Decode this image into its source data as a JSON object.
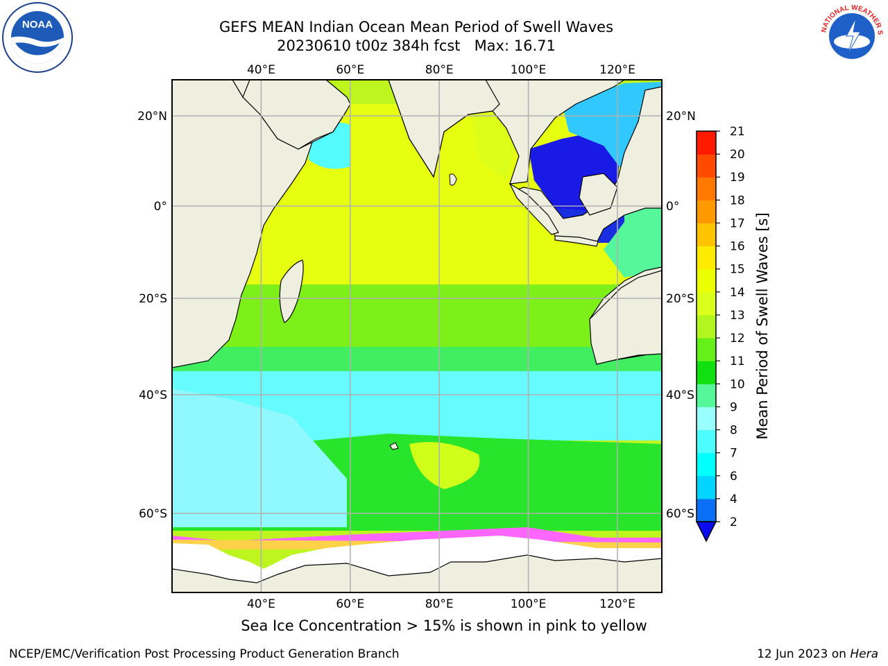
{
  "header": {
    "title_line1": "GEFS MEAN Indian Ocean Mean Period of Swell Waves",
    "title_line2": "20230610 t00z 384h fcst   Max: 16.71"
  },
  "map": {
    "lon_ticks": [
      "40°E",
      "60°E",
      "80°E",
      "100°E",
      "120°E"
    ],
    "lat_ticks": [
      "20°N",
      "0°",
      "20°S",
      "40°S",
      "60°S"
    ],
    "lon_range": [
      20,
      130
    ],
    "lat_range": [
      -72,
      28
    ]
  },
  "colorbar": {
    "label": "Mean Period of Swell Waves [s]",
    "ticks": [
      "2",
      "4",
      "6",
      "7",
      "8",
      "9",
      "10",
      "11",
      "12",
      "13",
      "14",
      "15",
      "16",
      "17",
      "18",
      "19",
      "20",
      "21"
    ],
    "colors": [
      "#0a6ff5",
      "#00d4ff",
      "#00ffff",
      "#4dfcff",
      "#99ffff",
      "#55f79a",
      "#10e010",
      "#66f01a",
      "#b2f51f",
      "#d9ff1a",
      "#ecff00",
      "#ffeb00",
      "#ffc400",
      "#ff9900",
      "#ff7800",
      "#ff4a00",
      "#ff1a00"
    ],
    "under_color": "#0c0cf0"
  },
  "subtitle": "Sea Ice Concentration > 15% is shown in pink to yellow",
  "footer": {
    "left": "NCEP/EMC/Verification Post Processing Product Generation Branch",
    "right_date": "12 Jun 2023 on ",
    "right_host": "Hera"
  },
  "logos": {
    "left_text": "NOAA",
    "right_text": "NATIONAL WEATHER SERVICE"
  }
}
